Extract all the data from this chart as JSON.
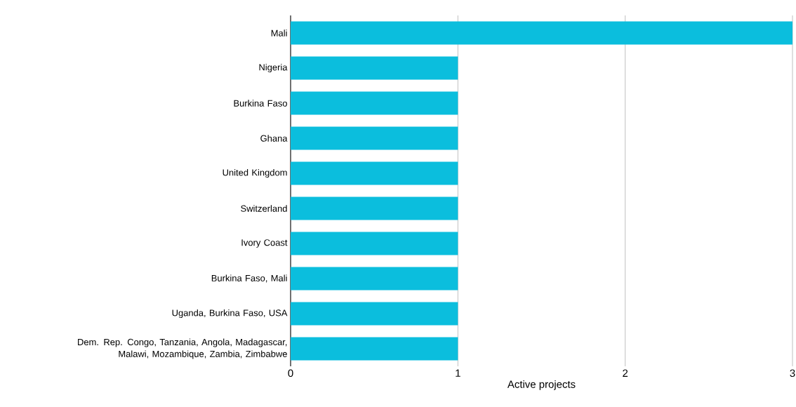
{
  "chart_data": {
    "type": "bar",
    "orientation": "horizontal",
    "categories": [
      "Mali",
      "Nigeria",
      "Burkina Faso",
      "Ghana",
      "United Kingdom",
      "Switzerland",
      "Ivory Coast",
      "Burkina Faso, Mali",
      "Uganda, Burkina Faso, USA",
      "Dem. Rep. Congo, Tanzania, Angola, Madagascar, Malawi, Mozambique, Zambia, Zimbabwe"
    ],
    "values": [
      3,
      1,
      1,
      1,
      1,
      1,
      1,
      1,
      1,
      1
    ],
    "color": "#0bbedd",
    "xlabel": "Active projects",
    "xlim": [
      0,
      3
    ],
    "xticks": [
      0,
      1,
      2,
      3
    ],
    "grid": "x"
  }
}
